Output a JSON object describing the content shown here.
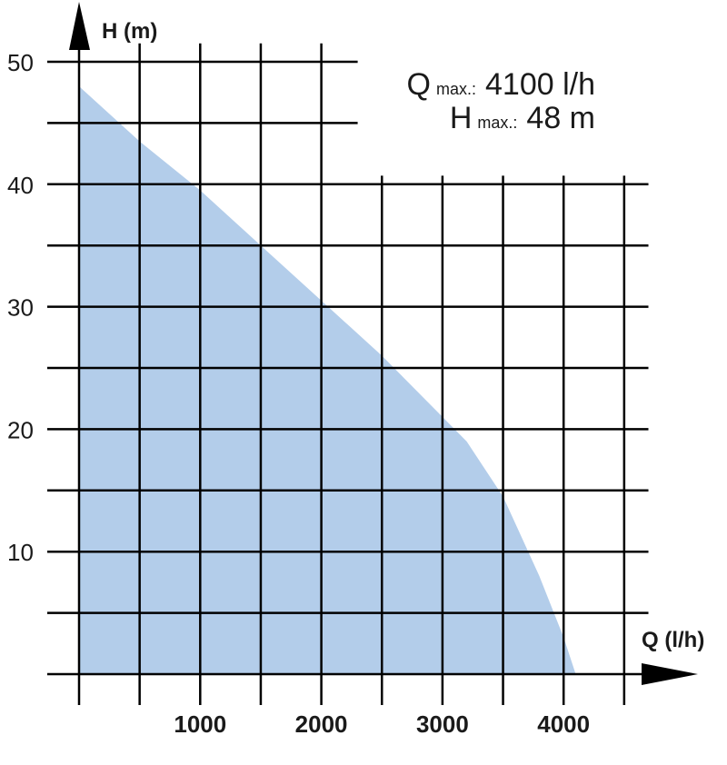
{
  "chart_data": {
    "type": "area",
    "xlabel": "Q (l/h)",
    "ylabel": "H (m)",
    "xlim": [
      0,
      4700
    ],
    "ylim": [
      0,
      50
    ],
    "x_ticks": [
      1000,
      2000,
      3000,
      4000
    ],
    "x_tick_labels": [
      "1000",
      "2000",
      "3000",
      "4000"
    ],
    "y_ticks": [
      10,
      20,
      30,
      40,
      50
    ],
    "y_tick_labels": [
      "10",
      "20",
      "30",
      "40",
      "50"
    ],
    "x_grid_step": 500,
    "y_grid_step": 5,
    "grid": true,
    "fill_color": "#b3cdea",
    "series": [
      {
        "x": [
          0,
          500,
          1000,
          1500,
          2000,
          2500,
          3000,
          3200,
          3500,
          3800,
          4000,
          4100
        ],
        "y": [
          48,
          43.5,
          39.5,
          35,
          30.5,
          26,
          21,
          19,
          14.5,
          8,
          3,
          0
        ]
      }
    ],
    "annotations": [
      {
        "symbol": "Q",
        "subscript": "max.:",
        "value": "4100 l/h"
      },
      {
        "symbol": "H",
        "subscript": "max.:",
        "value": "48 m"
      }
    ]
  }
}
